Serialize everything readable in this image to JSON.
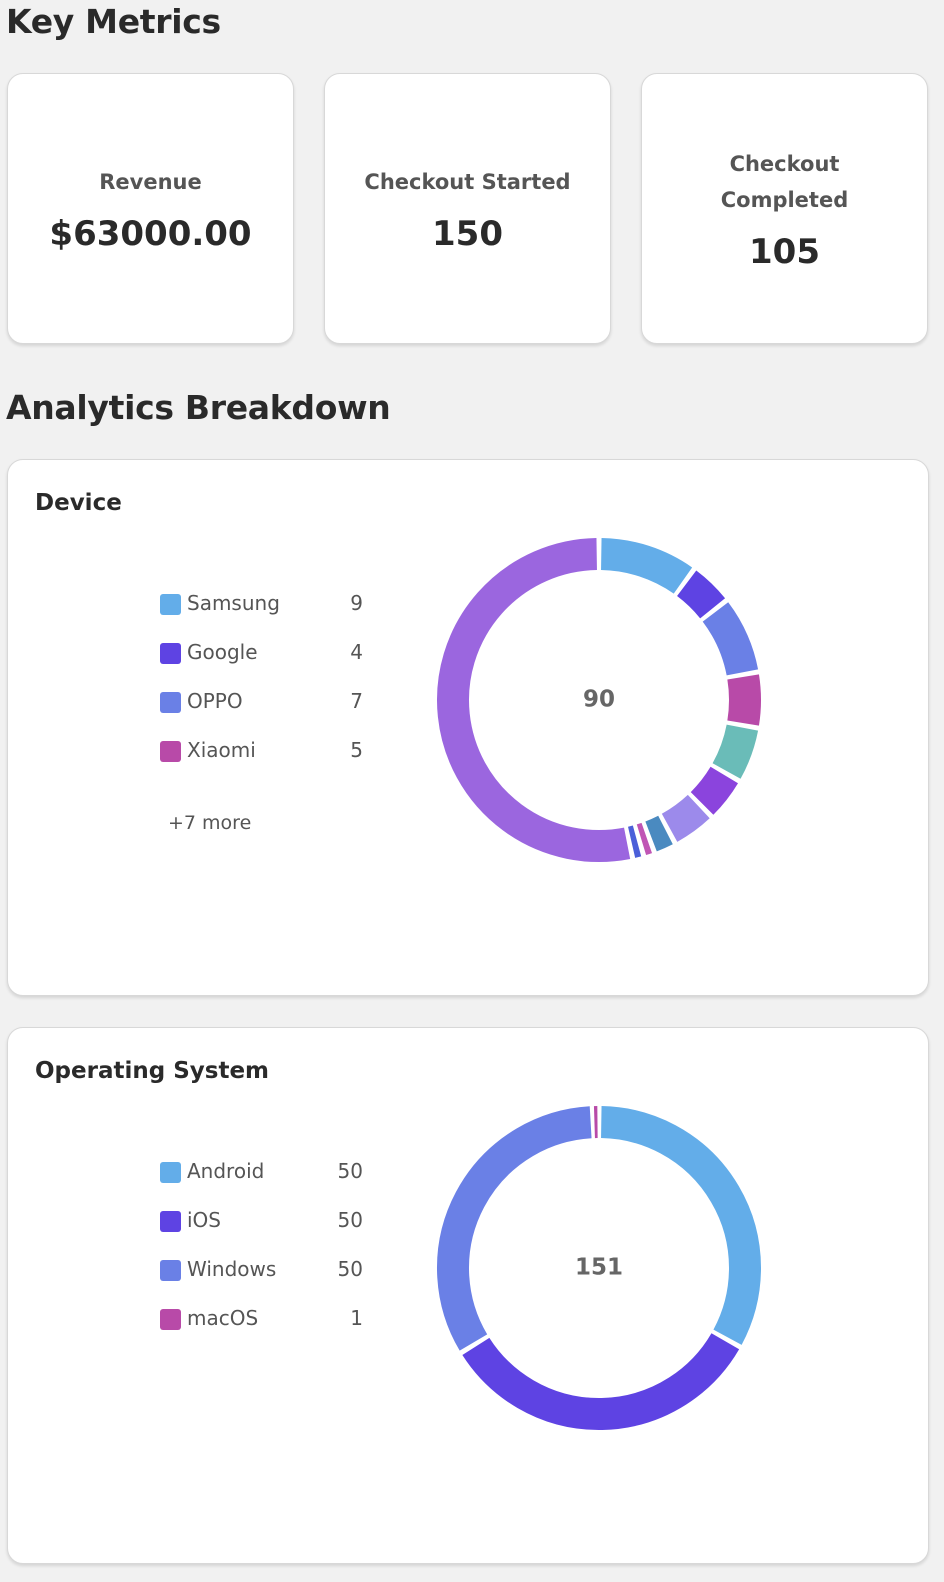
{
  "header": {
    "title": "Key Metrics"
  },
  "metrics": [
    {
      "label": "Revenue",
      "value": "$63000.00"
    },
    {
      "label": "Checkout Started",
      "value": "150"
    },
    {
      "label": "Checkout Completed",
      "value": "105"
    }
  ],
  "section_title": "Analytics Breakdown",
  "breakdowns": [
    {
      "title": "Device",
      "total": "90",
      "more_label": "+7 more",
      "segments": [
        {
          "label": "Samsung",
          "value": 9,
          "color": "#63ade9"
        },
        {
          "label": "Google",
          "value": 4,
          "color": "#5e43e3"
        },
        {
          "label": "OPPO",
          "value": 7,
          "color": "#6a80e6"
        },
        {
          "label": "Xiaomi",
          "value": 5,
          "color": "#b84aa8"
        }
      ],
      "hidden_segments": [
        {
          "value": 5,
          "color": "#6abcb8"
        },
        {
          "value": 4,
          "color": "#8b44dd"
        },
        {
          "value": 4,
          "color": "#9c8aeb"
        },
        {
          "value": 2,
          "color": "#4a8ac0"
        },
        {
          "value": 1,
          "color": "#c055b5"
        },
        {
          "value": 1,
          "color": "#4b5fd9"
        },
        {
          "value": 48,
          "color": "#9b66df"
        }
      ]
    },
    {
      "title": "Operating System",
      "total": "151",
      "segments": [
        {
          "label": "Android",
          "value": 50,
          "color": "#63ade9"
        },
        {
          "label": "iOS",
          "value": 50,
          "color": "#5e43e3"
        },
        {
          "label": "Windows",
          "value": 50,
          "color": "#6a80e6"
        },
        {
          "label": "macOS",
          "value": 1,
          "color": "#b84aa8"
        }
      ],
      "hidden_segments": []
    }
  ]
}
